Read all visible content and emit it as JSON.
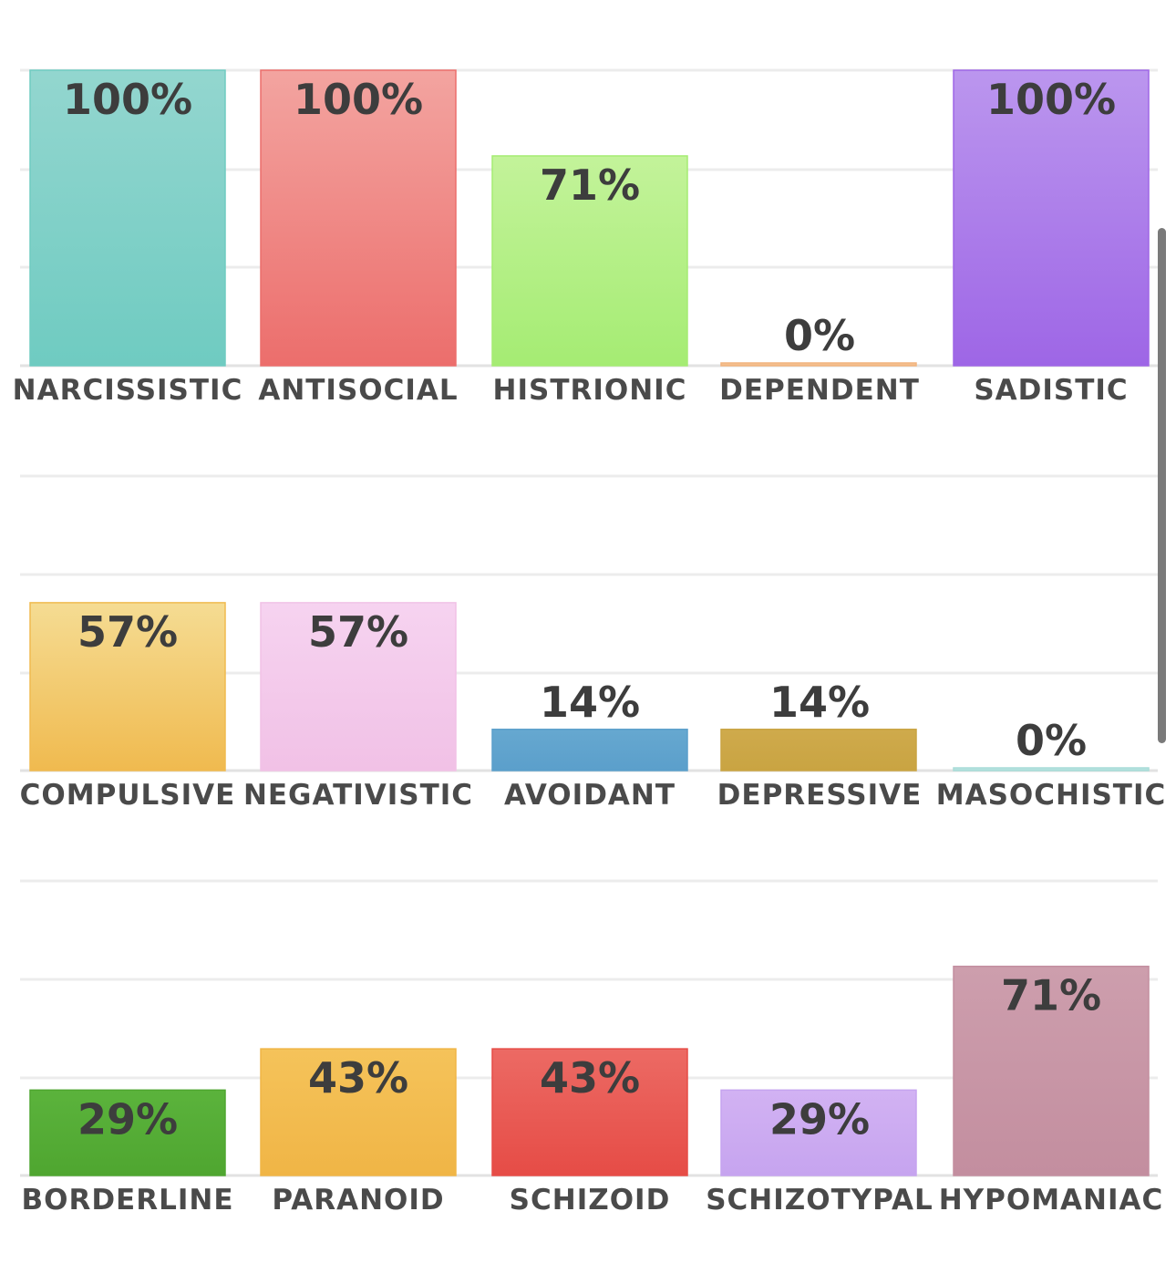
{
  "chart_data": [
    {
      "type": "bar",
      "categories": [
        "NARCISSISTIC",
        "ANTISOCIAL",
        "HISTRIONIC",
        "DEPENDENT",
        "SADISTIC"
      ],
      "values": [
        100,
        100,
        71,
        0,
        100
      ],
      "value_labels": [
        "100%",
        "100%",
        "71%",
        "0%",
        "100%"
      ],
      "colors": [
        [
          "#93d6cf",
          "#6fcbc1"
        ],
        [
          "#f3a4a0",
          "#ec6e6c"
        ],
        [
          "#c3f39a",
          "#a5ec73"
        ],
        [
          "#f6c9a0",
          "#f2b47e"
        ],
        [
          "#bb96ee",
          "#9e66e6"
        ]
      ],
      "ylim": [
        0,
        100
      ],
      "grid": true
    },
    {
      "type": "bar",
      "categories": [
        "COMPULSIVE",
        "NEGATIVISTIC",
        "AVOIDANT",
        "DEPRESSIVE",
        "MASOCHISTIC"
      ],
      "values": [
        57,
        57,
        14,
        14,
        0
      ],
      "value_labels": [
        "57%",
        "57%",
        "14%",
        "14%",
        "0%"
      ],
      "colors": [
        [
          "#f5dc93",
          "#f0ba4f"
        ],
        [
          "#f6d3f0",
          "#f1c1e6"
        ],
        [
          "#66a8d0",
          "#5b9fcb"
        ],
        [
          "#cfaa4c",
          "#c9a442"
        ],
        [
          "#bfe6e3",
          "#a9dcd8"
        ]
      ],
      "ylim": [
        0,
        100
      ],
      "grid": true
    },
    {
      "type": "bar",
      "categories": [
        "BORDERLINE",
        "PARANOID",
        "SCHIZOID",
        "SCHIZOTYPAL",
        "HYPOMANIAC"
      ],
      "values": [
        29,
        43,
        43,
        29,
        71
      ],
      "value_labels": [
        "29%",
        "43%",
        "43%",
        "29%",
        "71%"
      ],
      "colors": [
        [
          "#5bb33c",
          "#4fa630"
        ],
        [
          "#f5c35a",
          "#f0b546"
        ],
        [
          "#ec6a64",
          "#e64c46"
        ],
        [
          "#d2b2f3",
          "#c6a4ef"
        ],
        [
          "#cd9ead",
          "#c38e9f"
        ]
      ],
      "ylim": [
        0,
        100
      ],
      "grid": true
    }
  ]
}
